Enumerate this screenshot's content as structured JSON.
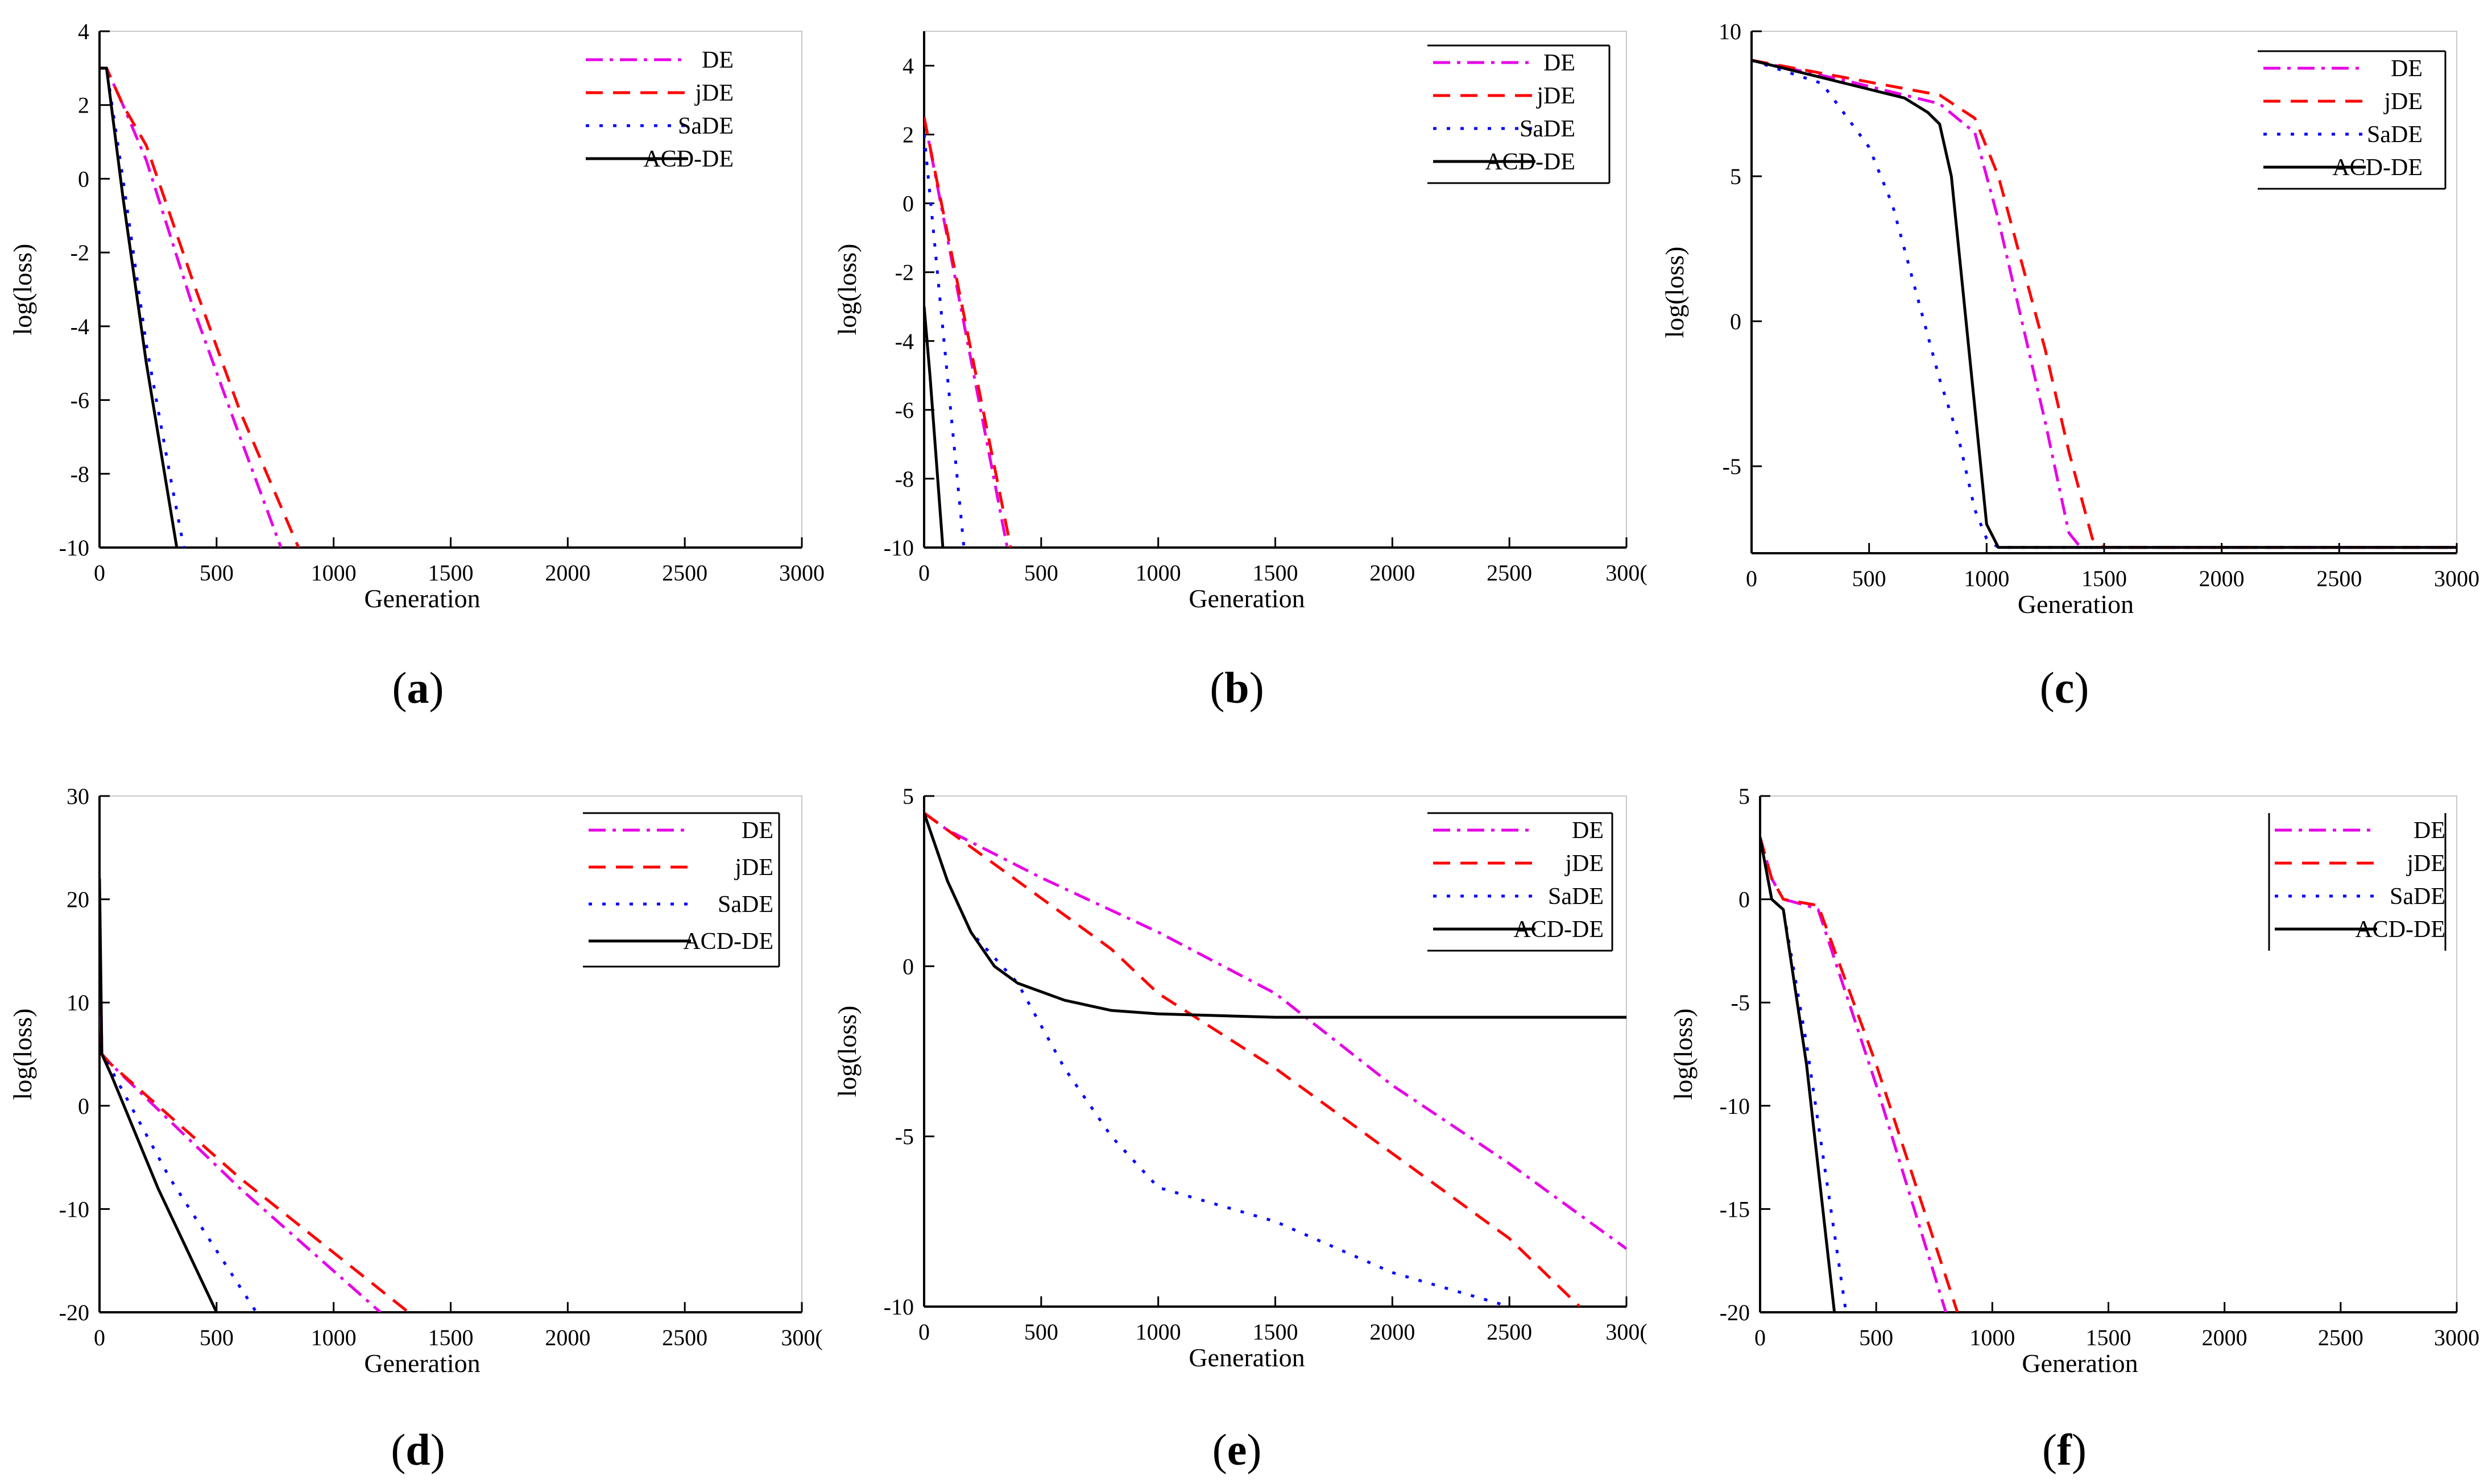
{
  "chart_data": [
    {
      "panel": "a",
      "type": "line",
      "xlabel": "Generation",
      "ylabel": "log(loss)",
      "xlim": [
        0,
        3000
      ],
      "ylim": [
        -10,
        4
      ],
      "xticks": [
        "0",
        "500",
        "1000",
        "1500",
        "2000",
        "2500",
        "3000"
      ],
      "yticks": [
        "-10",
        "-8",
        "-6",
        "-4",
        "-2",
        "0",
        "2",
        "4"
      ],
      "legend_position": "top-right",
      "legend_frame": "none",
      "series": [
        {
          "name": "DE",
          "color": "#e600e6",
          "dash": "dashdot",
          "x": [
            0,
            30,
            100,
            200,
            400,
            600,
            775
          ],
          "y": [
            3,
            3,
            2,
            0.5,
            -3.5,
            -7,
            -10
          ]
        },
        {
          "name": "jDE",
          "color": "#ff0000",
          "dash": "dash",
          "x": [
            0,
            30,
            100,
            200,
            400,
            600,
            850
          ],
          "y": [
            3,
            3,
            2,
            0.9,
            -2.8,
            -6.3,
            -10
          ]
        },
        {
          "name": "SaDE",
          "color": "#0000ff",
          "dash": "dot",
          "x": [
            0,
            30,
            100,
            200,
            300,
            360
          ],
          "y": [
            3,
            3,
            0,
            -4.5,
            -8,
            -10
          ]
        },
        {
          "name": "ACD-DE",
          "color": "#000000",
          "dash": "solid",
          "x": [
            0,
            30,
            100,
            200,
            330
          ],
          "y": [
            3,
            3,
            -0.5,
            -5,
            -10
          ]
        }
      ]
    },
    {
      "panel": "b",
      "type": "line",
      "xlabel": "Generation",
      "ylabel": "log(loss)",
      "xlim": [
        0,
        3000
      ],
      "ylim": [
        -10,
        5
      ],
      "xticks": [
        "0",
        "500",
        "1000",
        "1500",
        "2000",
        "2500",
        "300("
      ],
      "yticks": [
        "-10",
        "-8",
        "-6",
        "-4",
        "-2",
        "0",
        "2",
        "4"
      ],
      "legend_position": "top-right",
      "legend_frame": "box",
      "series": [
        {
          "name": "DE",
          "color": "#e600e6",
          "dash": "dashdot",
          "x": [
            0,
            355
          ],
          "y": [
            2.5,
            -10
          ]
        },
        {
          "name": "jDE",
          "color": "#ff0000",
          "dash": "dash",
          "x": [
            0,
            370
          ],
          "y": [
            2.5,
            -10
          ]
        },
        {
          "name": "SaDE",
          "color": "#0000ff",
          "dash": "dot",
          "x": [
            0,
            170
          ],
          "y": [
            2,
            -10
          ]
        },
        {
          "name": "ACD-DE",
          "color": "#000000",
          "dash": "solid",
          "x": [
            0,
            25,
            80
          ],
          "y": [
            -3,
            -5,
            -10
          ]
        }
      ]
    },
    {
      "panel": "c",
      "type": "line",
      "xlabel": "Generation",
      "ylabel": "log(loss)",
      "xlim": [
        0,
        3000
      ],
      "ylim": [
        -8,
        10
      ],
      "xticks": [
        "0",
        "500",
        "1000",
        "1500",
        "2000",
        "2500",
        "3000"
      ],
      "yticks": [
        "-5",
        "0",
        "5",
        "10"
      ],
      "legend_position": "top-right",
      "legend_frame": "box",
      "series": [
        {
          "name": "DE",
          "color": "#e600e6",
          "dash": "dashdot",
          "x": [
            0,
            400,
            800,
            950,
            1050,
            1150,
            1250,
            1350,
            1400,
            3000
          ],
          "y": [
            9,
            8.3,
            7.5,
            6.5,
            3.5,
            0,
            -3.5,
            -7.3,
            -7.8,
            -7.8
          ]
        },
        {
          "name": "jDE",
          "color": "#ff0000",
          "dash": "dash",
          "x": [
            0,
            400,
            800,
            950,
            1050,
            1150,
            1250,
            1350,
            1450,
            1500,
            3000
          ],
          "y": [
            9,
            8.4,
            7.8,
            7,
            5,
            2,
            -1,
            -4.5,
            -7.5,
            -7.8,
            -7.8
          ]
        },
        {
          "name": "SaDE",
          "color": "#0000ff",
          "dash": "dot",
          "x": [
            0,
            300,
            500,
            600,
            700,
            800,
            880,
            950,
            1000,
            1050,
            1100,
            3000
          ],
          "y": [
            9,
            8.2,
            6,
            4,
            1,
            -2,
            -4,
            -6.5,
            -7.5,
            -7.8,
            -7.8,
            -7.8
          ]
        },
        {
          "name": "ACD-DE",
          "color": "#000000",
          "dash": "solid",
          "x": [
            0,
            300,
            500,
            650,
            750,
            800,
            850,
            900,
            950,
            1000,
            1050,
            3000
          ],
          "y": [
            9,
            8.4,
            8,
            7.7,
            7.2,
            6.8,
            5,
            1,
            -3,
            -7,
            -7.8,
            -7.8
          ]
        }
      ]
    },
    {
      "panel": "d",
      "type": "line",
      "xlabel": "Generation",
      "ylabel": "log(loss)",
      "xlim": [
        0,
        3000
      ],
      "ylim": [
        -20,
        30
      ],
      "xticks": [
        "0",
        "500",
        "1000",
        "1500",
        "2000",
        "2500",
        "300("
      ],
      "yticks": [
        "-20",
        "-10",
        "0",
        "10",
        "20",
        "30"
      ],
      "legend_position": "top-right",
      "legend_frame": "box",
      "series": [
        {
          "name": "DE",
          "color": "#e600e6",
          "dash": "dashdot",
          "x": [
            0,
            10,
            50,
            600,
            1200
          ],
          "y": [
            12,
            5,
            4,
            -8,
            -20
          ]
        },
        {
          "name": "jDE",
          "color": "#ff0000",
          "dash": "dash",
          "x": [
            0,
            10,
            50,
            600,
            1320
          ],
          "y": [
            13,
            5,
            4,
            -7,
            -20
          ]
        },
        {
          "name": "SaDE",
          "color": "#0000ff",
          "dash": "dot",
          "x": [
            0,
            10,
            50,
            300,
            670
          ],
          "y": [
            20,
            5,
            3.5,
            -7,
            -20
          ]
        },
        {
          "name": "ACD-DE",
          "color": "#000000",
          "dash": "solid",
          "x": [
            0,
            10,
            50,
            250,
            500
          ],
          "y": [
            22,
            5,
            3,
            -8,
            -20
          ]
        }
      ]
    },
    {
      "panel": "e",
      "type": "line",
      "xlabel": "Generation",
      "ylabel": "log(loss)",
      "xlim": [
        0,
        3000
      ],
      "ylim": [
        -10,
        5
      ],
      "xticks": [
        "0",
        "500",
        "1000",
        "1500",
        "2000",
        "2500",
        "300("
      ],
      "yticks": [
        "-10",
        "-5",
        "0",
        "5"
      ],
      "legend_position": "top-right",
      "legend_frame": "box",
      "series": [
        {
          "name": "DE",
          "color": "#e600e6",
          "dash": "dashdot",
          "x": [
            0,
            100,
            500,
            1000,
            1500,
            2000,
            2500,
            3000
          ],
          "y": [
            4.5,
            4,
            2.6,
            1,
            -0.8,
            -3.5,
            -5.8,
            -8.3
          ]
        },
        {
          "name": "jDE",
          "color": "#ff0000",
          "dash": "dash",
          "x": [
            0,
            100,
            500,
            800,
            1000,
            1500,
            2000,
            2500,
            2800
          ],
          "y": [
            4.5,
            4,
            2,
            0.5,
            -0.8,
            -3,
            -5.5,
            -8,
            -10
          ]
        },
        {
          "name": "SaDE",
          "color": "#0000ff",
          "dash": "dot",
          "x": [
            0,
            100,
            200,
            400,
            600,
            800,
            1000,
            1500,
            2000,
            2500
          ],
          "y": [
            4.5,
            2.5,
            1,
            -0.5,
            -3,
            -5,
            -6.5,
            -7.5,
            -9,
            -10
          ]
        },
        {
          "name": "ACD-DE",
          "color": "#000000",
          "dash": "solid",
          "x": [
            0,
            100,
            200,
            300,
            400,
            600,
            800,
            1000,
            1500,
            3000
          ],
          "y": [
            4.5,
            2.5,
            1,
            0,
            -0.5,
            -1,
            -1.3,
            -1.4,
            -1.5,
            -1.5
          ]
        }
      ]
    },
    {
      "panel": "f",
      "type": "line",
      "xlabel": "Generation",
      "ylabel": "log(loss)",
      "xlim": [
        0,
        3000
      ],
      "ylim": [
        -20,
        5
      ],
      "xticks": [
        "0",
        "500",
        "1000",
        "1500",
        "2000",
        "2500",
        "3000"
      ],
      "yticks": [
        "-20",
        "-15",
        "-10",
        "-5",
        "0",
        "5"
      ],
      "legend_position": "top-right",
      "legend_frame": "left-right",
      "series": [
        {
          "name": "DE",
          "color": "#e600e6",
          "dash": "dashdot",
          "x": [
            0,
            50,
            100,
            200,
            250,
            500,
            800
          ],
          "y": [
            3,
            1,
            0,
            -0.3,
            -0.5,
            -9,
            -20
          ]
        },
        {
          "name": "jDE",
          "color": "#ff0000",
          "dash": "dash",
          "x": [
            0,
            50,
            100,
            200,
            250,
            500,
            850
          ],
          "y": [
            3,
            1,
            0,
            -0.2,
            -0.3,
            -8,
            -20
          ]
        },
        {
          "name": "SaDE",
          "color": "#0000ff",
          "dash": "dot",
          "x": [
            0,
            50,
            100,
            200,
            370
          ],
          "y": [
            3,
            0,
            -0.5,
            -7,
            -20
          ]
        },
        {
          "name": "ACD-DE",
          "color": "#000000",
          "dash": "solid",
          "x": [
            0,
            50,
            100,
            200,
            320
          ],
          "y": [
            3,
            0,
            -0.5,
            -8,
            -20
          ]
        }
      ]
    }
  ],
  "captions": [
    "a",
    "b",
    "c",
    "d",
    "e",
    "f"
  ]
}
